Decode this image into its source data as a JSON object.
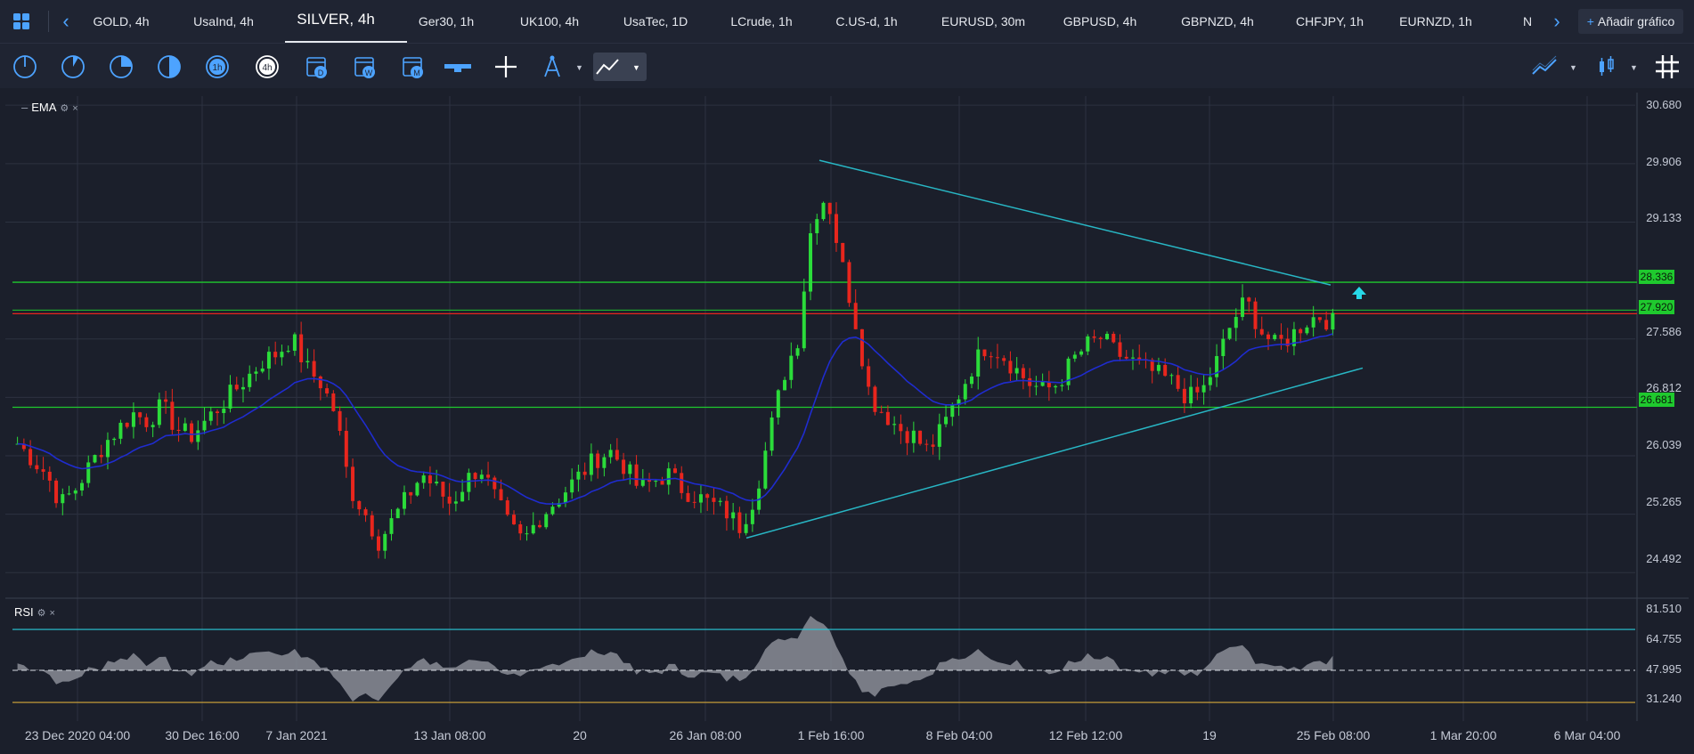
{
  "tabs": [
    {
      "label": "GOLD, 4h"
    },
    {
      "label": "UsaInd, 4h"
    },
    {
      "label": "SILVER, 4h"
    },
    {
      "label": "Ger30, 1h"
    },
    {
      "label": "UK100, 4h"
    },
    {
      "label": "UsaTec, 1D"
    },
    {
      "label": "LCrude, 1h"
    },
    {
      "label": "C.US-d, 1h"
    },
    {
      "label": "EURUSD, 30m"
    },
    {
      "label": "GBPUSD, 4h"
    },
    {
      "label": "GBPNZD, 4h"
    },
    {
      "label": "CHFJPY, 1h"
    },
    {
      "label": "EURNZD, 1h"
    },
    {
      "label": "N"
    }
  ],
  "active_tab": "SILVER, 4h",
  "add_chart_label": "Añadir gráfico",
  "toolbar": {
    "timeframes": [
      "1m",
      "5m",
      "15m",
      "30m",
      "1h",
      "4h",
      "D",
      "W",
      "M"
    ]
  },
  "main_indicator": {
    "name": "EMA"
  },
  "rsi_indicator": {
    "name": "RSI"
  },
  "price_axis": [
    "30.680",
    "29.906",
    "29.133",
    "28.336",
    "27.920",
    "27.586",
    "26.812",
    "26.681",
    "26.039",
    "25.265",
    "24.492"
  ],
  "rsi_axis": [
    "81.510",
    "64.755",
    "47.995",
    "31.240"
  ],
  "price_tags": [
    {
      "value": "28.336",
      "color": "#1fc92e"
    },
    {
      "value": "27.920",
      "color": "#1fc92e"
    },
    {
      "value": "26.681",
      "color": "#1fc92e"
    }
  ],
  "time_axis": [
    "23 Dec 2020 04:00",
    "30 Dec 16:00",
    "7 Jan 2021",
    "13 Jan 08:00",
    "20",
    "26 Jan 08:00",
    "1 Feb 16:00",
    "8 Feb 04:00",
    "12 Feb 12:00",
    "19",
    "25 Feb 08:00",
    "1 Mar 20:00",
    "6 Mar 04:00"
  ],
  "colors": {
    "background": "#1b1f2b",
    "bull": "#2bdc3a",
    "bear": "#e8261d",
    "ema": "#1f2ccf",
    "trendline": "#28b6c4",
    "horizontal_level": "#1fc92e",
    "red_level": "#e8261d",
    "rsi_band": "#28c9d9",
    "rsi_fill": "#8a8d97"
  },
  "chart_data": {
    "type": "candlestick",
    "symbol": "SILVER, 4h",
    "indicators": [
      "EMA",
      "RSI"
    ],
    "price_range": [
      24.2,
      30.8
    ],
    "y_ticks": [
      30.68,
      29.906,
      29.133,
      28.336,
      27.92,
      27.586,
      26.812,
      26.681,
      26.039,
      25.265,
      24.492
    ],
    "horizontal_levels": [
      28.336,
      27.92,
      26.681
    ],
    "trendlines": [
      {
        "from": [
          "1 Feb 16:00",
          29.95
        ],
        "to": [
          "25 Feb 08:00",
          28.3
        ]
      },
      {
        "from": [
          "27 Jan",
          24.95
        ],
        "to": [
          "26 Feb",
          27.2
        ]
      }
    ],
    "close_path": [
      26.2,
      26.0,
      25.8,
      25.4,
      25.6,
      25.9,
      26.2,
      26.4,
      26.6,
      26.5,
      26.7,
      26.4,
      26.3,
      26.5,
      26.7,
      26.9,
      27.1,
      27.3,
      27.4,
      27.6,
      27.2,
      27.0,
      26.6,
      25.6,
      25.3,
      24.9,
      25.2,
      25.5,
      25.8,
      25.6,
      25.4,
      25.7,
      25.9,
      25.5,
      25.1,
      24.9,
      25.2,
      25.4,
      25.6,
      25.8,
      26.0,
      26.1,
      25.9,
      25.6,
      25.7,
      25.8,
      25.6,
      25.5,
      25.4,
      25.3,
      25.1,
      25.5,
      26.3,
      27.1,
      27.6,
      29.2,
      29.5,
      28.6,
      27.8,
      26.8,
      26.6,
      26.4,
      26.3,
      26.1,
      26.4,
      26.8,
      27.2,
      27.5,
      27.4,
      27.2,
      27.0,
      26.9,
      27.0,
      27.3,
      27.5,
      27.6,
      27.4,
      27.3,
      27.2,
      27.1,
      27.0,
      26.8,
      26.9,
      27.3,
      27.8,
      28.1,
      27.7,
      27.5,
      27.6,
      27.8,
      27.9,
      27.8
    ],
    "rsi_levels": [
      64.755,
      47.995,
      31.24
    ],
    "rsi_range": [
      28,
      82
    ]
  }
}
